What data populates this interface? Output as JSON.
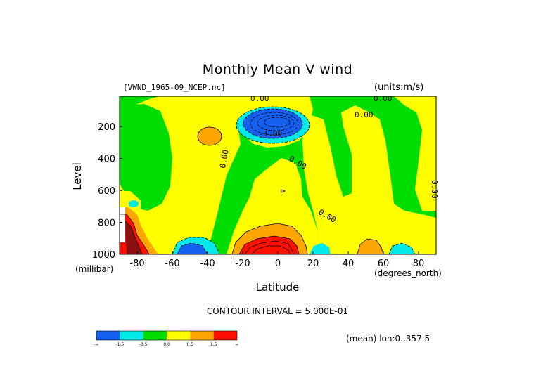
{
  "chart_data": {
    "type": "heatmap",
    "title": "Monthly Mean V wind",
    "dataset_label": "[VWND_1965-09_NCEP.nc]",
    "units_label": "(units:m/s)",
    "xlabel": "Latitude",
    "x_units": "(degrees_north)",
    "ylabel": "Level",
    "y_units": "(millibar)",
    "xlim": [
      -90,
      90
    ],
    "ylim": [
      1000,
      10
    ],
    "y_inverted": true,
    "x_ticks": [
      "-80",
      "-60",
      "-40",
      "-20",
      "0",
      "20",
      "40",
      "60",
      "80"
    ],
    "x_tick_values": [
      -80,
      -60,
      -40,
      -20,
      0,
      20,
      40,
      60,
      80
    ],
    "y_ticks": [
      "200",
      "400",
      "600",
      "800",
      "1000"
    ],
    "y_tick_values": [
      200,
      400,
      600,
      800,
      1000
    ],
    "contour_interval_label": "CONTOUR INTERVAL = 5.000E-01",
    "mean_label": "(mean) lon:0..357.5",
    "contour_labels": [
      "0.00",
      "0.00",
      "0.00",
      "0.00",
      "0.00",
      "0.00",
      "0.00",
      "-1.00"
    ],
    "colorbar": {
      "colors": [
        "#1560f0",
        "#00e8e8",
        "#00dd00",
        "#ffff00",
        "#ffa500",
        "#ff1000"
      ],
      "tick_labels": [
        "-∞",
        "-1.5",
        "-0.5",
        "0.0",
        "0.5",
        "1.5",
        "∞"
      ]
    },
    "regions": [
      {
        "name": "upper-green-band",
        "level": "-0.5..0.0",
        "center": [
          0,
          80
        ]
      },
      {
        "name": "upper-left-yellow",
        "level": "0.0..0.5",
        "center": [
          -50,
          250
        ]
      },
      {
        "name": "orange-patch-upper-left",
        "level": "0.5..1.5",
        "center": [
          -38,
          240
        ]
      },
      {
        "name": "blue-core-upper-tropics",
        "level": "< -1.5",
        "center": [
          10,
          180
        ]
      },
      {
        "name": "cyan-ring-upper-tropics",
        "level": "-1.5..-0.5",
        "center": [
          10,
          190
        ]
      },
      {
        "name": "lower-tropics-yellow",
        "level": "0.0..0.5",
        "center": [
          0,
          700
        ]
      },
      {
        "name": "lower-tropics-red-core",
        "level": "> 1.5",
        "center": [
          -5,
          960
        ]
      },
      {
        "name": "south-polar-red",
        "level": "> 1.5",
        "center": [
          -85,
          950
        ]
      },
      {
        "name": "blue-patch-lower-south",
        "level": "< -1.5",
        "center": [
          -47,
          980
        ]
      },
      {
        "name": "northern-yellow",
        "level": "0.0..0.5",
        "center": [
          60,
          500
        ]
      },
      {
        "name": "orange-patch-lower-north",
        "level": "0.5..1.5",
        "center": [
          52,
          960
        ]
      },
      {
        "name": "cyan-patch-lower-north",
        "level": "-1.5..-0.5",
        "center": [
          72,
          980
        ]
      },
      {
        "name": "cyan-patch-lower-equator",
        "level": "-1.5..-0.5",
        "center": [
          22,
          980
        ]
      }
    ]
  }
}
